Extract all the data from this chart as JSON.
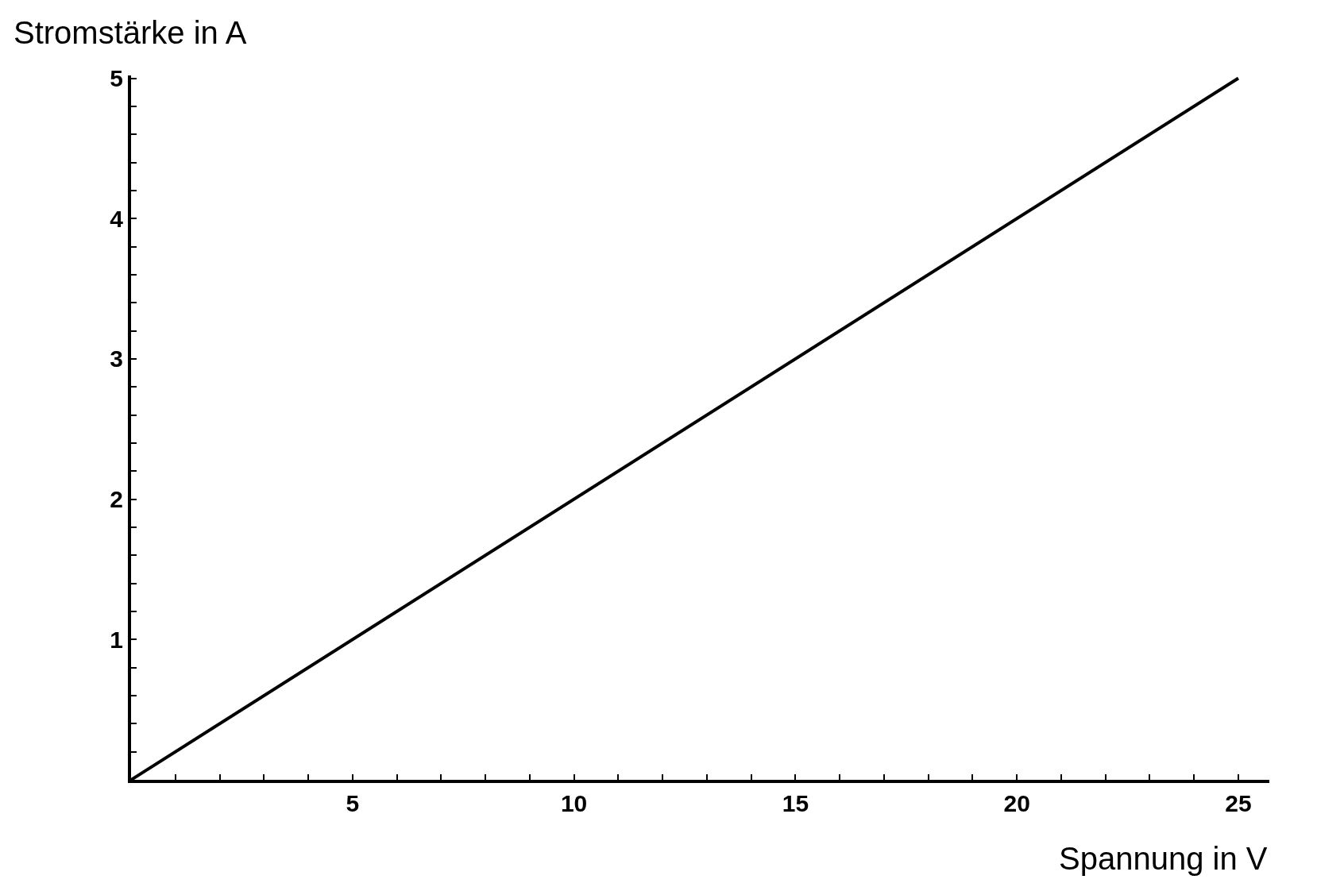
{
  "chart_data": {
    "type": "line",
    "xlabel": "Spannung in V",
    "ylabel": "Stromstärke in A",
    "x": [
      0,
      25
    ],
    "series": [
      {
        "color": "#000000",
        "values": [
          0,
          5
        ]
      }
    ],
    "xlim": [
      0,
      25.7
    ],
    "ylim": [
      0,
      5.02
    ],
    "xticks": [
      {
        "value": 1,
        "label": null
      },
      {
        "value": 2,
        "label": null
      },
      {
        "value": 3,
        "label": null
      },
      {
        "value": 4,
        "label": null
      },
      5,
      {
        "value": 6,
        "label": null
      },
      {
        "value": 7,
        "label": null
      },
      {
        "value": 8,
        "label": null
      },
      {
        "value": 9,
        "label": null
      },
      10,
      {
        "value": 11,
        "label": null
      },
      {
        "value": 12,
        "label": null
      },
      {
        "value": 13,
        "label": null
      },
      {
        "value": 14,
        "label": null
      },
      15,
      {
        "value": 16,
        "label": null
      },
      {
        "value": 17,
        "label": null
      },
      {
        "value": 18,
        "label": null
      },
      {
        "value": 19,
        "label": null
      },
      20,
      {
        "value": 21,
        "label": null
      },
      {
        "value": 22,
        "label": null
      },
      {
        "value": 23,
        "label": null
      },
      {
        "value": 24,
        "label": null
      },
      25
    ],
    "yticks": [
      {
        "value": 0.2,
        "label": null
      },
      {
        "value": 0.4,
        "label": null
      },
      {
        "value": 0.6,
        "label": null
      },
      {
        "value": 0.8,
        "label": null
      },
      1,
      {
        "value": 1.2,
        "label": null
      },
      {
        "value": 1.4,
        "label": null
      },
      {
        "value": 1.6,
        "label": null
      },
      {
        "value": 1.8,
        "label": null
      },
      2,
      {
        "value": 2.2,
        "label": null
      },
      {
        "value": 2.4,
        "label": null
      },
      {
        "value": 2.6,
        "label": null
      },
      {
        "value": 2.8,
        "label": null
      },
      3,
      {
        "value": 3.2,
        "label": null
      },
      {
        "value": 3.4,
        "label": null
      },
      {
        "value": 3.6,
        "label": null
      },
      {
        "value": 3.8,
        "label": null
      },
      4,
      {
        "value": 4.2,
        "label": null
      },
      {
        "value": 4.4,
        "label": null
      },
      {
        "value": 4.6,
        "label": null
      },
      {
        "value": 4.8,
        "label": null
      },
      5
    ],
    "marker": "none",
    "line_style": "solid"
  }
}
